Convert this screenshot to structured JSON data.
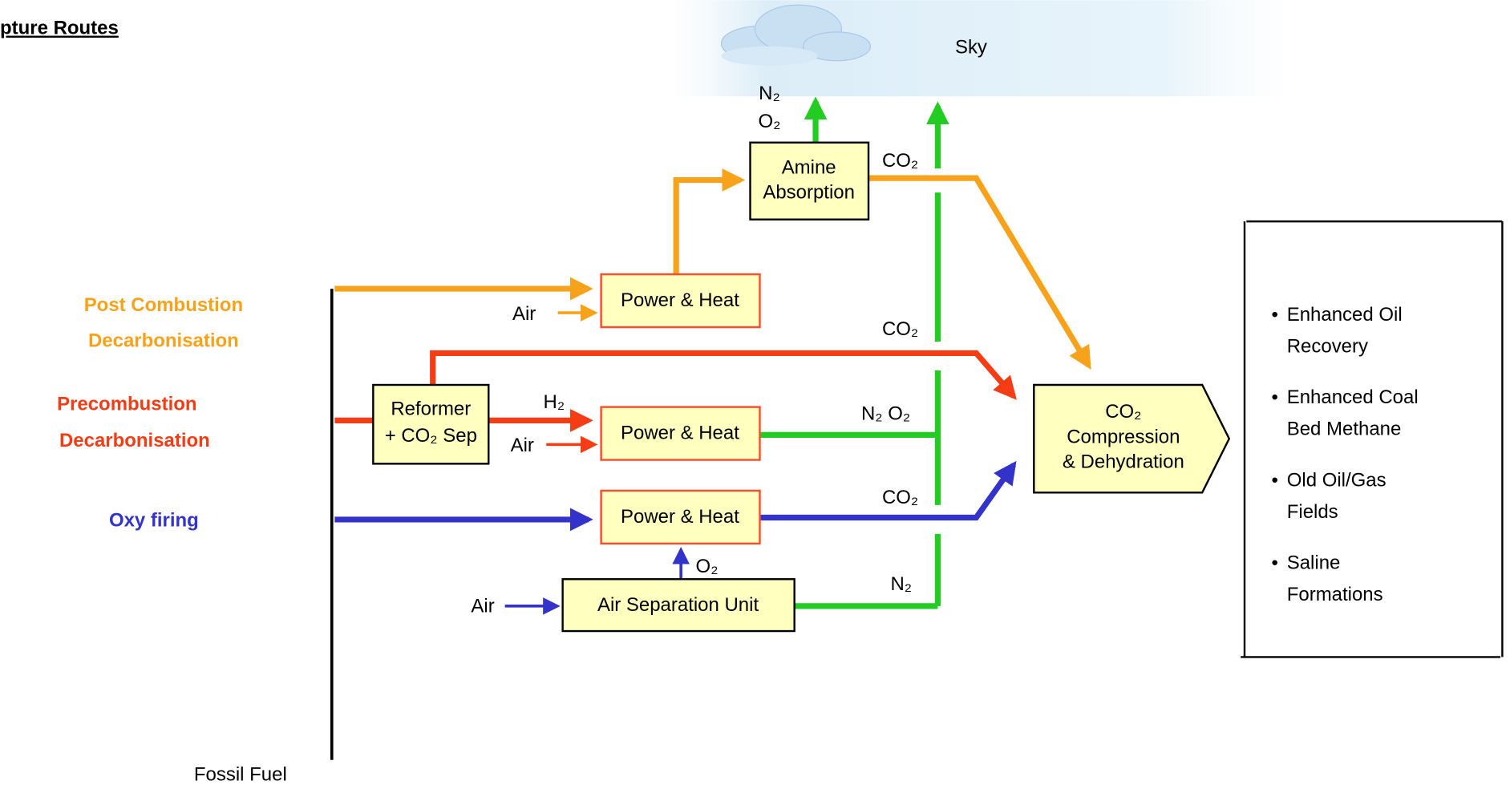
{
  "title": "pture Routes",
  "sky": "Sky",
  "fossil_fuel": "Fossil Fuel",
  "routes": [
    {
      "lines": [
        "Post Combustion",
        "Decarbonisation"
      ]
    },
    {
      "lines": [
        "Precombustion",
        "Decarbonisation"
      ]
    },
    {
      "lines": [
        "Oxy firing"
      ]
    }
  ],
  "nodes": {
    "amine": [
      "Amine",
      "Absorption"
    ],
    "power_heat_post": "Power & Heat",
    "reformer": [
      "Reformer",
      "+ CO₂ Sep"
    ],
    "power_heat_pre": "Power & Heat",
    "power_heat_oxy": "Power & Heat",
    "asu": "Air Separation Unit",
    "compression": [
      "CO₂",
      "Compression",
      "& Dehydration"
    ]
  },
  "flow_labels": {
    "amine_vent_n2": "N₂",
    "amine_vent_o2": "O₂",
    "amine_co2": "CO₂",
    "air_post": "Air",
    "pre_co2": "CO₂",
    "h2": "H₂",
    "air_pre": "Air",
    "n2_o2": "N₂ O₂",
    "oxy_co2": "CO₂",
    "o2": "O₂",
    "air_asu": "Air",
    "asu_n2": "N₂"
  },
  "storage": [
    {
      "lines": [
        "Enhanced Oil",
        "Recovery"
      ]
    },
    {
      "lines": [
        "Enhanced Coal",
        "Bed Methane"
      ]
    },
    {
      "lines": [
        "Old Oil/Gas",
        "Fields"
      ]
    },
    {
      "lines": [
        "Saline",
        "Formations"
      ]
    }
  ]
}
